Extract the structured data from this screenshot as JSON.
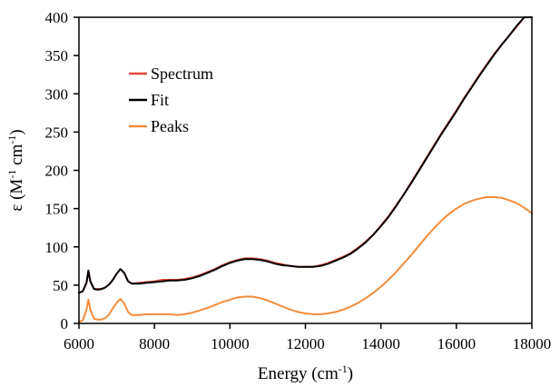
{
  "chart_data": {
    "type": "line",
    "title": "",
    "xlabel": {
      "text": "Energy (cm",
      "sup": "-1",
      "suffix": ")"
    },
    "ylabel": {
      "prefix": "ε (M",
      "sup1": "-1",
      "mid": " cm",
      "sup2": "-1",
      "suffix": ")"
    },
    "xlim": [
      6000,
      18000
    ],
    "ylim": [
      0,
      400
    ],
    "xticks": [
      6000,
      8000,
      10000,
      12000,
      14000,
      16000,
      18000
    ],
    "yticks": [
      0,
      50,
      100,
      150,
      200,
      250,
      300,
      350,
      400
    ],
    "grid": false,
    "legend_position": "upper-left",
    "series": [
      {
        "name": "Spectrum",
        "color": "#e8463c",
        "points": [
          [
            6000,
            40
          ],
          [
            6100,
            42
          ],
          [
            6200,
            53
          ],
          [
            6250,
            69
          ],
          [
            6300,
            55
          ],
          [
            6400,
            45
          ],
          [
            6500,
            45
          ],
          [
            6600,
            45
          ],
          [
            6700,
            47
          ],
          [
            6800,
            51
          ],
          [
            6900,
            57
          ],
          [
            7000,
            65
          ],
          [
            7100,
            71
          ],
          [
            7200,
            66
          ],
          [
            7300,
            55
          ],
          [
            7400,
            52
          ],
          [
            7600,
            53
          ],
          [
            7800,
            54
          ],
          [
            8000,
            55
          ],
          [
            8200,
            57
          ],
          [
            8400,
            57
          ],
          [
            8600,
            57
          ],
          [
            8800,
            58
          ],
          [
            9000,
            60
          ],
          [
            9200,
            63
          ],
          [
            9400,
            67
          ],
          [
            9600,
            71
          ],
          [
            9800,
            76
          ],
          [
            10000,
            80
          ],
          [
            10200,
            83
          ],
          [
            10400,
            85
          ],
          [
            10600,
            85
          ],
          [
            10800,
            84
          ],
          [
            11000,
            82
          ],
          [
            11200,
            79
          ],
          [
            11400,
            77
          ],
          [
            11600,
            75
          ],
          [
            11800,
            74
          ],
          [
            12000,
            74
          ],
          [
            12200,
            74
          ],
          [
            12400,
            76
          ],
          [
            12600,
            79
          ],
          [
            12800,
            83
          ],
          [
            13000,
            87
          ],
          [
            13200,
            92
          ],
          [
            13400,
            99
          ],
          [
            13600,
            107
          ],
          [
            13800,
            116
          ],
          [
            14000,
            128
          ],
          [
            14200,
            140
          ],
          [
            14400,
            154
          ],
          [
            14600,
            168
          ],
          [
            14800,
            184
          ],
          [
            15000,
            200
          ],
          [
            15200,
            216
          ],
          [
            15400,
            232
          ],
          [
            15600,
            248
          ],
          [
            15800,
            263
          ],
          [
            16000,
            278
          ],
          [
            16200,
            294
          ],
          [
            16400,
            309
          ],
          [
            16600,
            324
          ],
          [
            16800,
            338
          ],
          [
            17000,
            352
          ],
          [
            17200,
            364
          ],
          [
            17400,
            376
          ],
          [
            17600,
            388
          ],
          [
            17800,
            401
          ],
          [
            18000,
            407
          ]
        ]
      },
      {
        "name": "Fit",
        "color": "#000000",
        "points": [
          [
            6000,
            40
          ],
          [
            6100,
            42
          ],
          [
            6200,
            53
          ],
          [
            6250,
            69
          ],
          [
            6300,
            55
          ],
          [
            6400,
            45
          ],
          [
            6500,
            44
          ],
          [
            6600,
            45
          ],
          [
            6700,
            47
          ],
          [
            6800,
            51
          ],
          [
            6900,
            57
          ],
          [
            7000,
            65
          ],
          [
            7100,
            71
          ],
          [
            7200,
            66
          ],
          [
            7300,
            55
          ],
          [
            7400,
            52
          ],
          [
            7600,
            52
          ],
          [
            7800,
            53
          ],
          [
            8000,
            54
          ],
          [
            8200,
            55
          ],
          [
            8400,
            56
          ],
          [
            8600,
            56
          ],
          [
            8800,
            57
          ],
          [
            9000,
            59
          ],
          [
            9200,
            62
          ],
          [
            9400,
            66
          ],
          [
            9600,
            70
          ],
          [
            9800,
            75
          ],
          [
            10000,
            79
          ],
          [
            10200,
            82
          ],
          [
            10400,
            84
          ],
          [
            10600,
            84
          ],
          [
            10800,
            83
          ],
          [
            11000,
            81
          ],
          [
            11200,
            78
          ],
          [
            11400,
            76
          ],
          [
            11600,
            75
          ],
          [
            11800,
            74
          ],
          [
            12000,
            74
          ],
          [
            12200,
            74
          ],
          [
            12400,
            75
          ],
          [
            12600,
            78
          ],
          [
            12800,
            82
          ],
          [
            13000,
            86
          ],
          [
            13200,
            91
          ],
          [
            13400,
            98
          ],
          [
            13600,
            106
          ],
          [
            13800,
            116
          ],
          [
            14000,
            127
          ],
          [
            14200,
            139
          ],
          [
            14400,
            153
          ],
          [
            14600,
            168
          ],
          [
            14800,
            183
          ],
          [
            15000,
            199
          ],
          [
            15200,
            215
          ],
          [
            15400,
            231
          ],
          [
            15600,
            247
          ],
          [
            15800,
            262
          ],
          [
            16000,
            277
          ],
          [
            16200,
            293
          ],
          [
            16400,
            308
          ],
          [
            16600,
            323
          ],
          [
            16800,
            337
          ],
          [
            17000,
            351
          ],
          [
            17200,
            364
          ],
          [
            17400,
            376
          ],
          [
            17600,
            389
          ],
          [
            17800,
            402
          ],
          [
            18000,
            410
          ]
        ]
      },
      {
        "name": "Peaks",
        "color": "#f28c3c",
        "points": [
          [
            6000,
            2
          ],
          [
            6100,
            4
          ],
          [
            6200,
            18
          ],
          [
            6250,
            31
          ],
          [
            6300,
            18
          ],
          [
            6400,
            6
          ],
          [
            6500,
            5
          ],
          [
            6600,
            5
          ],
          [
            6700,
            7
          ],
          [
            6800,
            12
          ],
          [
            6900,
            20
          ],
          [
            7000,
            27
          ],
          [
            7100,
            32
          ],
          [
            7200,
            26
          ],
          [
            7300,
            15
          ],
          [
            7400,
            11
          ],
          [
            7600,
            11
          ],
          [
            7800,
            12
          ],
          [
            8000,
            12
          ],
          [
            8200,
            12
          ],
          [
            8400,
            12
          ],
          [
            8600,
            11
          ],
          [
            8800,
            12
          ],
          [
            9000,
            14
          ],
          [
            9200,
            17
          ],
          [
            9400,
            20
          ],
          [
            9600,
            24
          ],
          [
            9800,
            28
          ],
          [
            10000,
            31
          ],
          [
            10200,
            34
          ],
          [
            10400,
            35
          ],
          [
            10600,
            35
          ],
          [
            10800,
            33
          ],
          [
            11000,
            30
          ],
          [
            11200,
            26
          ],
          [
            11400,
            22
          ],
          [
            11600,
            18
          ],
          [
            11800,
            15
          ],
          [
            12000,
            13
          ],
          [
            12200,
            12
          ],
          [
            12400,
            12
          ],
          [
            12600,
            13
          ],
          [
            12800,
            15
          ],
          [
            13000,
            18
          ],
          [
            13200,
            22
          ],
          [
            13400,
            27
          ],
          [
            13600,
            33
          ],
          [
            13800,
            40
          ],
          [
            14000,
            48
          ],
          [
            14200,
            57
          ],
          [
            14400,
            67
          ],
          [
            14600,
            78
          ],
          [
            14800,
            89
          ],
          [
            15000,
            101
          ],
          [
            15200,
            113
          ],
          [
            15400,
            124
          ],
          [
            15600,
            134
          ],
          [
            15800,
            143
          ],
          [
            16000,
            150
          ],
          [
            16200,
            156
          ],
          [
            16400,
            160
          ],
          [
            16600,
            163
          ],
          [
            16800,
            165
          ],
          [
            17000,
            165
          ],
          [
            17200,
            164
          ],
          [
            17400,
            161
          ],
          [
            17600,
            157
          ],
          [
            17800,
            151
          ],
          [
            18000,
            144
          ]
        ]
      }
    ]
  }
}
